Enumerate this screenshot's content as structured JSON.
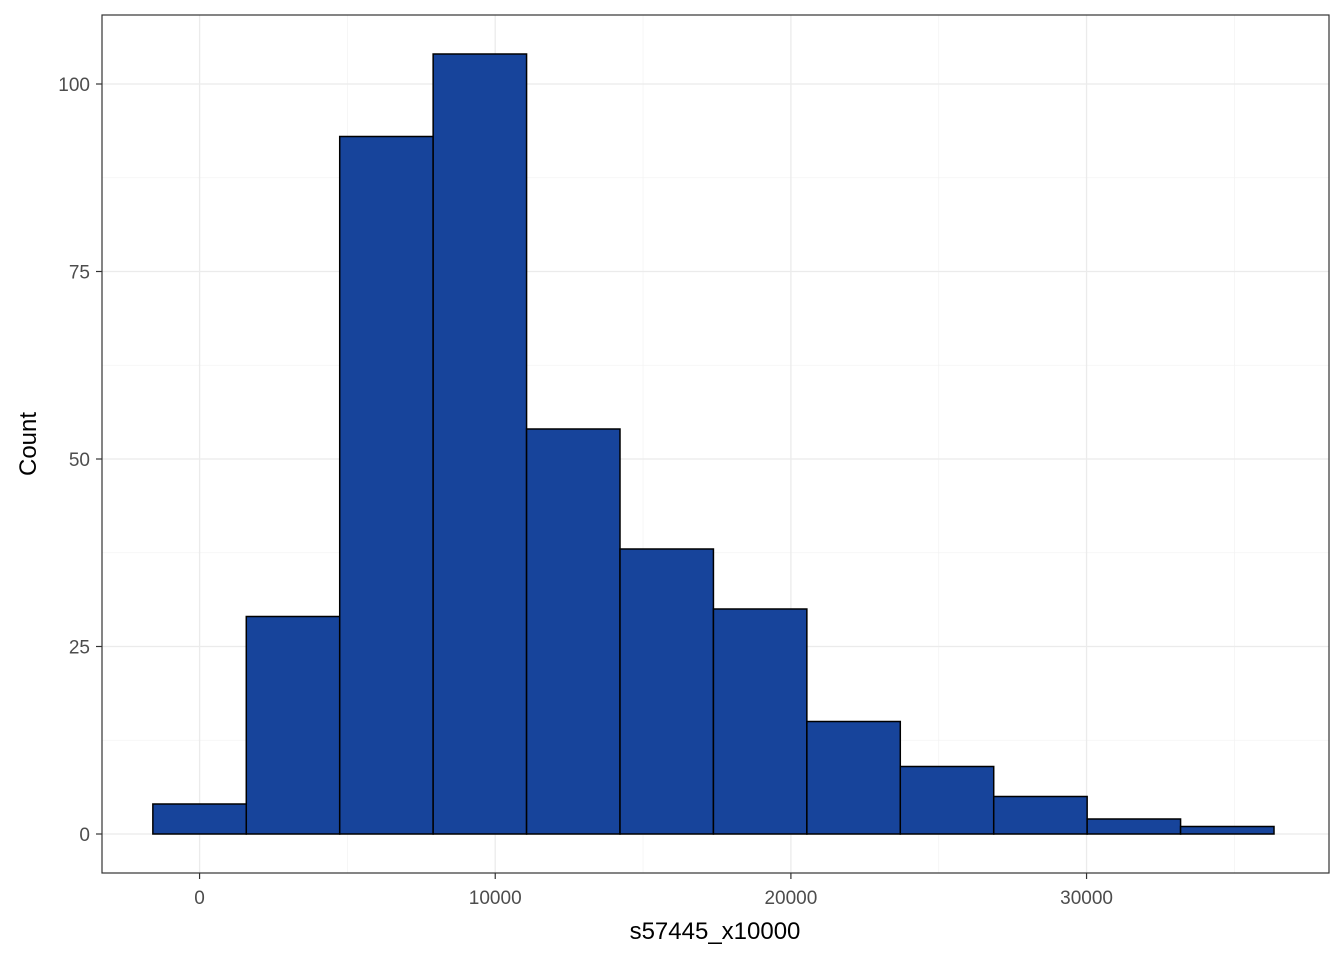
{
  "chart_data": {
    "type": "bar",
    "subtype": "histogram",
    "title": "",
    "xlabel": "s57445_x10000",
    "ylabel": "Count",
    "xlim": [
      -3300,
      38200
    ],
    "ylim": [
      -5.2,
      109.2
    ],
    "x_ticks": [
      0,
      10000,
      20000,
      30000
    ],
    "x_tick_labels": [
      "0",
      "10000",
      "20000",
      "30000"
    ],
    "y_ticks": [
      0,
      25,
      50,
      75,
      100
    ],
    "y_tick_labels": [
      "0",
      "25",
      "50",
      "75",
      "100"
    ],
    "grid": true,
    "legend": "none",
    "bins": [
      {
        "x0": -1580,
        "x1": 1580,
        "count": 4
      },
      {
        "x0": 1580,
        "x1": 4740,
        "count": 29
      },
      {
        "x0": 4740,
        "x1": 7900,
        "count": 93
      },
      {
        "x0": 7900,
        "x1": 11060,
        "count": 104
      },
      {
        "x0": 11060,
        "x1": 14220,
        "count": 54
      },
      {
        "x0": 14220,
        "x1": 17380,
        "count": 38
      },
      {
        "x0": 17380,
        "x1": 20540,
        "count": 30
      },
      {
        "x0": 20540,
        "x1": 23700,
        "count": 15
      },
      {
        "x0": 23700,
        "x1": 26860,
        "count": 9
      },
      {
        "x0": 26860,
        "x1": 30020,
        "count": 5
      },
      {
        "x0": 30020,
        "x1": 33180,
        "count": 2
      },
      {
        "x0": 33180,
        "x1": 36340,
        "count": 1
      }
    ],
    "colors": {
      "fill": "#17449b",
      "outline": "#000000"
    }
  }
}
